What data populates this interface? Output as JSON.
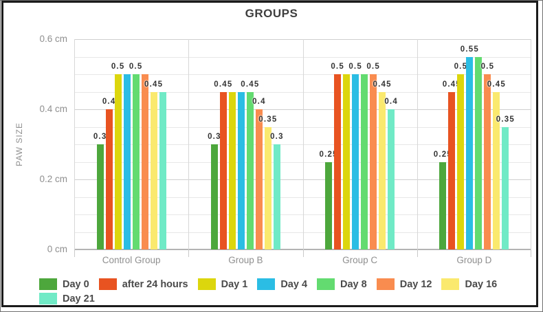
{
  "chart_data": {
    "type": "bar",
    "title": "GROUPS",
    "ylabel": "PAW SIZE",
    "xlabel": "",
    "unit": "cm",
    "ylim": [
      0,
      0.6
    ],
    "grid": "horizontal minor lines every 0.05, labeled major ticks every 0.2",
    "y_tick_values": [
      0,
      0.2,
      0.4,
      0.6
    ],
    "y_tick_labels": [
      "0 cm",
      "0.2 cm",
      "0.4 cm",
      "0.6 cm"
    ],
    "legend_position": "bottom",
    "legend_rows": [
      [
        "Day 0",
        "after 24 hours",
        "Day 1",
        "Day 4",
        "Day 8",
        "Day 12",
        "Day 16"
      ],
      [
        "Day 21"
      ]
    ],
    "categories": [
      "Control Group",
      "Group B",
      "Group C",
      "Group D"
    ],
    "series": [
      {
        "name": "Day 0",
        "color": "#4DA73C",
        "values": [
          0.3,
          0.3,
          0.25,
          0.25
        ]
      },
      {
        "name": "after 24 hours",
        "color": "#E85321",
        "values": [
          0.4,
          0.45,
          0.5,
          0.45
        ]
      },
      {
        "name": "Day 1",
        "color": "#DCD60D",
        "values": [
          0.5,
          0.45,
          0.5,
          0.5
        ]
      },
      {
        "name": "Day 4",
        "color": "#2BBDE4",
        "values": [
          0.5,
          0.45,
          0.5,
          0.55
        ]
      },
      {
        "name": "Day 8",
        "color": "#63DB70",
        "values": [
          0.5,
          0.45,
          0.5,
          0.55
        ]
      },
      {
        "name": "Day 12",
        "color": "#F98C4F",
        "values": [
          0.5,
          0.4,
          0.5,
          0.5
        ]
      },
      {
        "name": "Day 16",
        "color": "#FAE96E",
        "values": [
          0.45,
          0.35,
          0.45,
          0.45
        ]
      },
      {
        "name": "Day 21",
        "color": "#70EAC6",
        "values": [
          0.45,
          0.3,
          0.4,
          0.35
        ]
      }
    ],
    "visible_bar_labels": [
      [
        "0.3",
        "0.4",
        "0.5",
        "",
        "0.5",
        "",
        "0.45",
        ""
      ],
      [
        "0.3",
        "0.45",
        "",
        "",
        "0.45",
        "0.4",
        "0.35",
        "0.3"
      ],
      [
        "0.25",
        "0.5",
        "",
        "0.5",
        "",
        "0.5",
        "0.45",
        "0.4"
      ],
      [
        "0.25",
        "0.45",
        "0.5",
        "0.55",
        "",
        "0.5",
        "0.45",
        "0.35"
      ]
    ]
  }
}
